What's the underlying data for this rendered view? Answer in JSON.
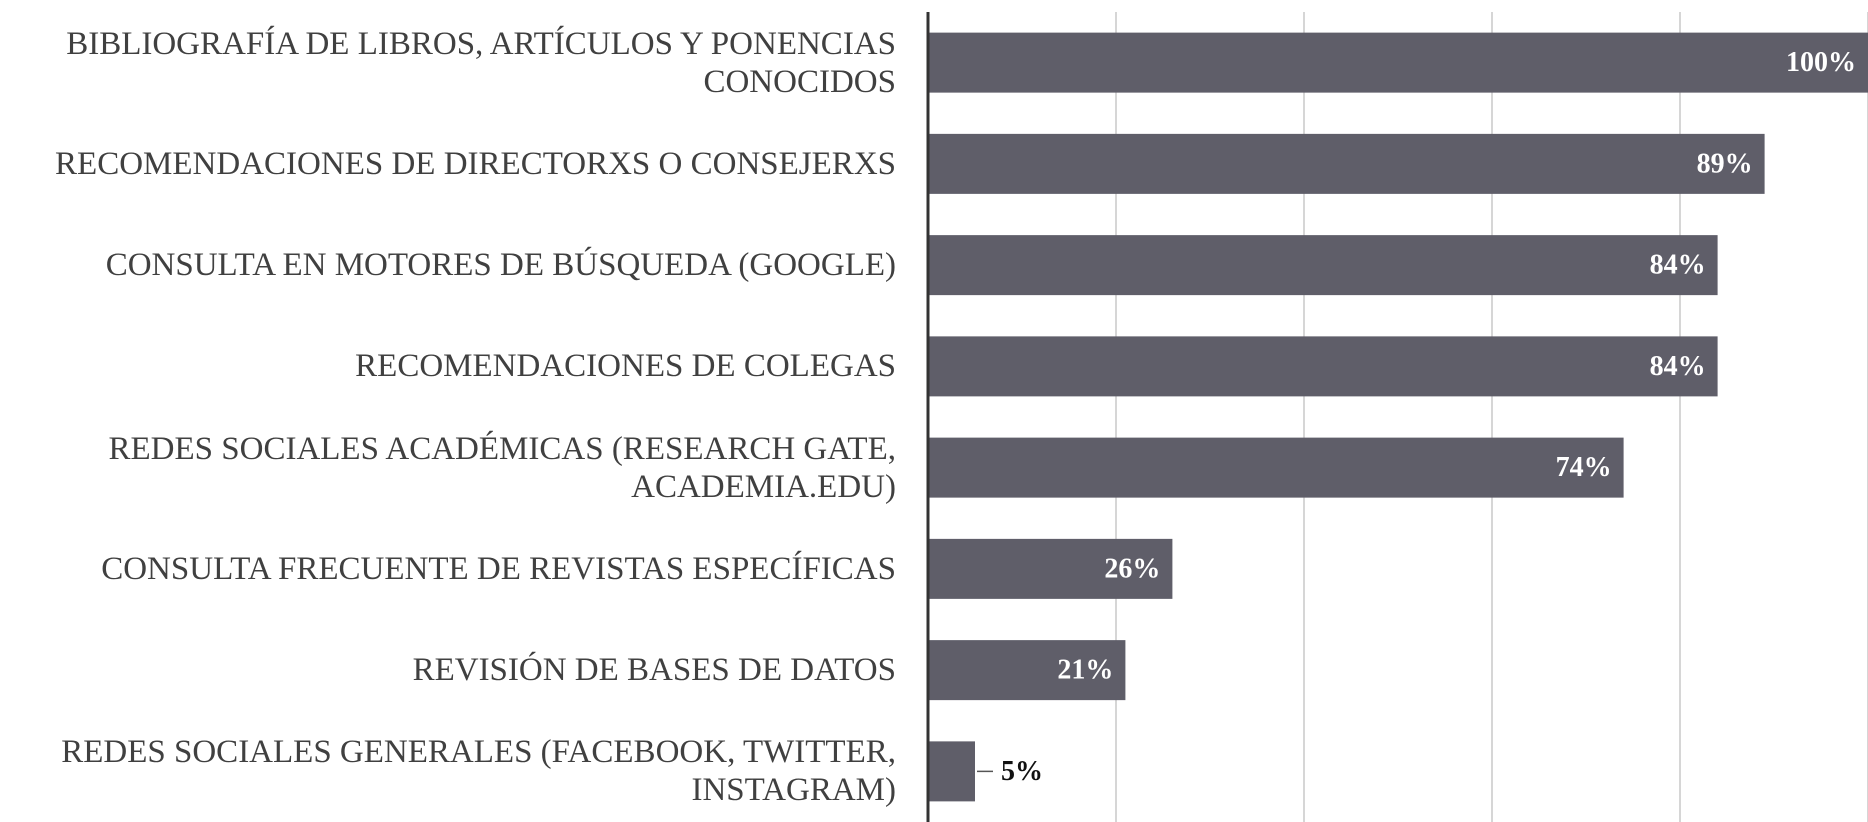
{
  "chart_data": {
    "type": "bar",
    "orientation": "horizontal",
    "categories": [
      "BIBLIOGRAFÍA DE LIBROS, ARTÍCULOS Y PONENCIAS\nCONOCIDOS",
      "RECOMENDACIONES DE DIRECTORXS O CONSEJERXS",
      "CONSULTA EN MOTORES DE BÚSQUEDA (GOOGLE)",
      "RECOMENDACIONES DE COLEGAS",
      "REDES SOCIALES ACADÉMICAS (RESEARCH GATE,\nACADEMIA.EDU)",
      "CONSULTA FRECUENTE DE REVISTAS ESPECÍFICAS",
      "REVISIÓN DE BASES DE DATOS",
      "REDES SOCIALES GENERALES (FACEBOOK, TWITTER,\nINSTAGRAM)"
    ],
    "values": [
      100,
      89,
      84,
      84,
      74,
      26,
      21,
      5
    ],
    "value_labels": [
      "100%",
      "89%",
      "84%",
      "84%",
      "74%",
      "26%",
      "21%",
      "5%"
    ],
    "color": "#5f5e69",
    "xlim": [
      0,
      100
    ],
    "xticks": [
      0,
      20,
      40,
      60,
      80,
      100
    ],
    "grid": true
  }
}
